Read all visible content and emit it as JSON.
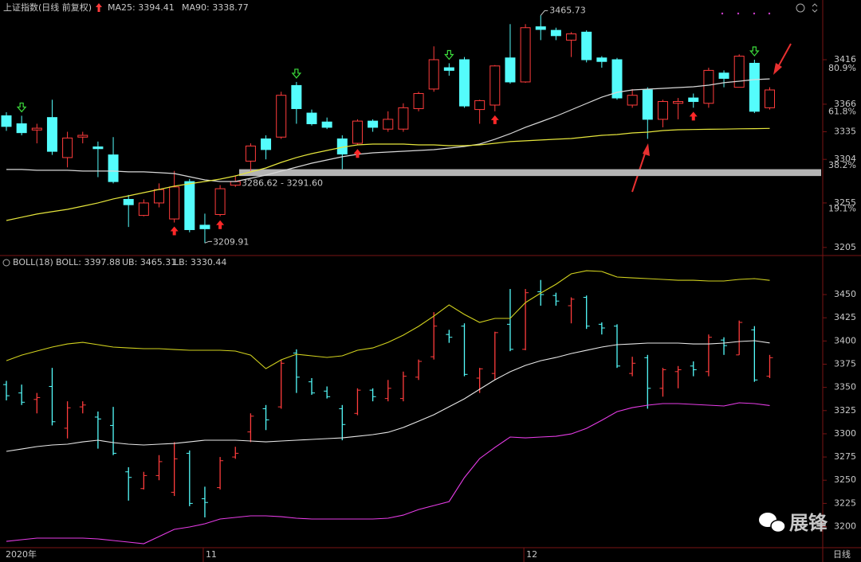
{
  "chart_data": [
    {
      "type": "candlestick",
      "title": "上证指数(日线 前复权)",
      "categories": [
        "2020年",
        null,
        null,
        null,
        null,
        null,
        null,
        null,
        null,
        null,
        null,
        null,
        null,
        "11",
        null,
        null,
        null,
        null,
        null,
        null,
        null,
        null,
        null,
        null,
        null,
        null,
        null,
        null,
        null,
        null,
        null,
        null,
        null,
        null,
        "12",
        null,
        null,
        null,
        null,
        null,
        null,
        null,
        null,
        null,
        null,
        null,
        null,
        null,
        null,
        null,
        null
      ],
      "open": [
        3353,
        3344,
        3337,
        3351,
        3306,
        3329,
        3318,
        3309,
        3259,
        3241,
        3255,
        3237,
        3279,
        3230,
        3242,
        3275,
        3302,
        3327,
        3329,
        3387,
        3356,
        3346,
        3327,
        3322,
        3347,
        3338,
        3338,
        3361,
        3383,
        3407,
        3416,
        3360,
        3365,
        3418,
        3391,
        3453,
        3449,
        3438,
        3447,
        3418,
        3416,
        3365,
        3382,
        3349,
        3367,
        3373,
        3367,
        3401,
        3385,
        3412,
        3362
      ],
      "high": [
        3357,
        3353,
        3344,
        3371,
        3335,
        3335,
        3324,
        3329,
        3264,
        3259,
        3277,
        3291,
        3282,
        3243,
        3275,
        3286,
        3322,
        3331,
        3380,
        3391,
        3360,
        3351,
        3331,
        3349,
        3349,
        3358,
        3367,
        3380,
        3431,
        3412,
        3419,
        3371,
        3410,
        3456,
        3456,
        3465.73,
        3452,
        3447,
        3449,
        3420,
        3418,
        3383,
        3385,
        3371,
        3373,
        3378,
        3407,
        3404,
        3422,
        3416,
        3385
      ],
      "low": [
        3336,
        3331,
        3322,
        3309,
        3295,
        3322,
        3284,
        3277,
        3228,
        3240,
        3250,
        3233,
        3222,
        3209.91,
        3240,
        3273,
        3291,
        3304,
        3327,
        3344,
        3342,
        3338,
        3293,
        3320,
        3335,
        3335,
        3335,
        3358,
        3380,
        3398,
        3362,
        3344,
        3358,
        3389,
        3390,
        3438,
        3438,
        3419,
        3413,
        3407,
        3371,
        3362,
        3327,
        3340,
        3349,
        3362,
        3362,
        3385,
        3385,
        3356,
        3360
      ],
      "close": [
        3341,
        3334,
        3339,
        3313,
        3328,
        3331,
        3316,
        3279,
        3253,
        3255,
        3270,
        3273,
        3225,
        3226,
        3271,
        3279,
        3319,
        3315,
        3376,
        3361,
        3344,
        3340,
        3310,
        3347,
        3340,
        3349,
        3362,
        3378,
        3416,
        3404,
        3364,
        3370,
        3409,
        3391,
        3452,
        3450,
        3443,
        3445,
        3416,
        3414,
        3373,
        3376,
        3349,
        3369,
        3369,
        3369,
        3404,
        3395,
        3420,
        3358,
        3382
      ],
      "up_color": "#ff3c3c",
      "down_color": "#54fcfc",
      "series": [
        {
          "name": "MA25: 3394.41",
          "color": "#d8d8d8",
          "values": [
            3292.6,
            3292.6,
            3291.7,
            3291.7,
            3291.7,
            3290.8,
            3290.8,
            3290.8,
            3289.9,
            3289.9,
            3289.0,
            3288.1,
            3284.5,
            3280.9,
            3279.1,
            3279.1,
            3282.7,
            3286.3,
            3290.8,
            3295.2,
            3299.7,
            3303.3,
            3306.9,
            3309.6,
            3311.3,
            3312.2,
            3313.1,
            3314.0,
            3314.9,
            3316.7,
            3318.5,
            3321.2,
            3326.6,
            3332.8,
            3340.0,
            3346.2,
            3352.5,
            3359.6,
            3366.8,
            3373.9,
            3379.3,
            3382.0,
            3382.9,
            3383.8,
            3384.7,
            3385.6,
            3387.4,
            3390.1,
            3391.8,
            3393.6,
            3394.41
          ]
        },
        {
          "name": "MA90: 3338.77",
          "color": "#e6e63c",
          "values": [
            3235.3,
            3238.9,
            3242.5,
            3245.2,
            3247.8,
            3251.4,
            3255.0,
            3259.5,
            3263.0,
            3266.6,
            3270.2,
            3273.8,
            3276.5,
            3279.1,
            3281.8,
            3285.4,
            3289.9,
            3294.3,
            3300.6,
            3306.0,
            3310.4,
            3314.0,
            3317.6,
            3320.3,
            3321.2,
            3321.2,
            3321.2,
            3320.3,
            3320.3,
            3319.4,
            3319.4,
            3320.3,
            3322.1,
            3323.9,
            3324.8,
            3325.7,
            3326.6,
            3327.4,
            3329.2,
            3331.0,
            3331.9,
            3333.7,
            3334.6,
            3336.4,
            3337.3,
            3337.5,
            3337.8,
            3338.0,
            3338.3,
            3338.5,
            3338.77
          ]
        }
      ],
      "sell_signals": [
        1,
        19,
        29,
        49
      ],
      "buy_signals": [
        11,
        14,
        23,
        32,
        45
      ],
      "high_mark": 3465.73,
      "low_mark": 3209.91,
      "zone": {
        "low": 3286.62,
        "high": 3291.6,
        "label": "3286.62 - 3291.60"
      },
      "fib_labels": [
        {
          "value": 80.9,
          "label": "80.9%"
        },
        {
          "value": 61.8,
          "label": "61.8%"
        },
        {
          "value": 38.2,
          "label": "38.2%"
        },
        {
          "value": 19.1,
          "label": "19.1%"
        }
      ],
      "ylim": [
        3196.8,
        3483.1
      ],
      "yticks": [
        3205,
        3255,
        3304,
        3335,
        3366,
        3416
      ],
      "grid": false
    },
    {
      "type": "boll",
      "title": "BOLL(18)",
      "series": [
        {
          "name": "BOLL: 3397.88",
          "color": "#e8e8e8",
          "values": [
            3281.1,
            3283.6,
            3286.2,
            3287.9,
            3288.8,
            3291.3,
            3293.1,
            3290.5,
            3288.8,
            3287.9,
            3288.8,
            3289.6,
            3291.3,
            3293.1,
            3293.1,
            3293.1,
            3292.2,
            3291.3,
            3292.2,
            3293.1,
            3293.9,
            3294.8,
            3295.6,
            3297.3,
            3299.1,
            3301.6,
            3306.8,
            3313.6,
            3320.5,
            3329.1,
            3337.7,
            3348.0,
            3358.2,
            3366.8,
            3373.7,
            3378.8,
            3382.2,
            3386.5,
            3389.9,
            3393.4,
            3396.0,
            3396.8,
            3397.7,
            3397.7,
            3397.7,
            3396.8,
            3396.8,
            3397.7,
            3399.4,
            3400.3,
            3397.88
          ]
        },
        {
          "name": "UB: 3465.31",
          "color": "#d2d21e",
          "values": [
            3378.8,
            3384.8,
            3389.1,
            3393.4,
            3396.8,
            3398.5,
            3396.0,
            3393.4,
            3392.5,
            3391.7,
            3391.7,
            3390.8,
            3390.0,
            3390.0,
            3390.0,
            3389.1,
            3384.8,
            3370.2,
            3379.7,
            3385.7,
            3384.0,
            3382.3,
            3384.0,
            3390.0,
            3392.5,
            3398.5,
            3406.3,
            3415.7,
            3426.8,
            3438.9,
            3428.6,
            3420.0,
            3424.3,
            3424.3,
            3441.4,
            3451.7,
            3461.1,
            3472.3,
            3475.7,
            3474.9,
            3468.9,
            3468.0,
            3467.2,
            3466.3,
            3465.4,
            3465.4,
            3464.6,
            3464.6,
            3466.3,
            3467.2,
            3465.31
          ]
        },
        {
          "name": "LB: 3330.44",
          "color": "#e63ce6",
          "values": [
            3184.1,
            3185.9,
            3187.6,
            3187.6,
            3187.6,
            3187.6,
            3186.7,
            3185.0,
            3183.3,
            3181.6,
            3189.3,
            3197.0,
            3199.6,
            3203.0,
            3208.2,
            3209.9,
            3211.6,
            3211.6,
            3210.7,
            3209.0,
            3208.2,
            3208.2,
            3208.2,
            3208.2,
            3208.2,
            3209.0,
            3212.4,
            3218.4,
            3222.7,
            3227.0,
            3252.8,
            3273.3,
            3285.3,
            3296.5,
            3295.6,
            3296.5,
            3297.3,
            3299.9,
            3305.9,
            3314.5,
            3323.9,
            3328.2,
            3330.8,
            3332.5,
            3332.5,
            3331.7,
            3330.8,
            3330.0,
            3333.4,
            3332.5,
            3330.44
          ]
        }
      ],
      "ylim": [
        3177.3,
        3491.2
      ],
      "yticks": [
        3200,
        3225,
        3250,
        3275,
        3300,
        3325,
        3350,
        3375,
        3400,
        3425,
        3450
      ],
      "grid": false
    }
  ],
  "period_label": "日线",
  "watermark": "展锋"
}
